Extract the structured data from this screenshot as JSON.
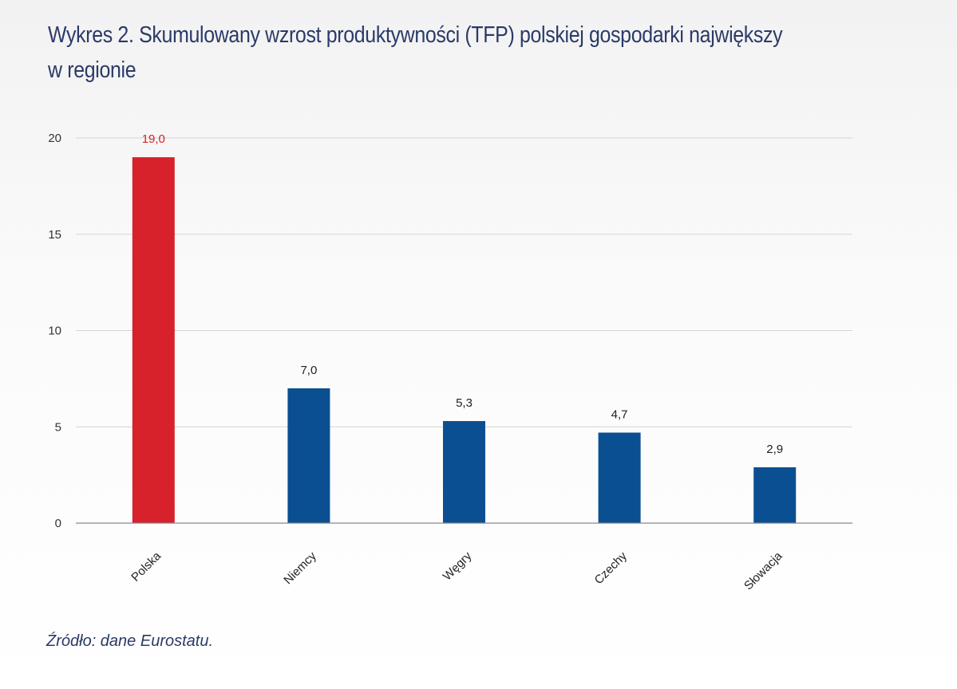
{
  "title_lines": [
    "Wykres 2. Skumulowany wzrost produktywności (TFP) polskiej gospodarki największy",
    "w regionie"
  ],
  "source": "Źródło: dane Eurostatu.",
  "colors": {
    "highlight": "#d7212b",
    "bar": "#0b4f93",
    "title": "#2b3a67"
  },
  "chart_data": {
    "type": "bar",
    "title": "Wykres 2. Skumulowany wzrost produktywności (TFP) polskiej gospodarki największy w regionie",
    "xlabel": "",
    "ylabel": "",
    "categories": [
      "Polska",
      "Niemcy",
      "Węgry",
      "Czechy",
      "Słowacja"
    ],
    "values": [
      19.0,
      7.0,
      5.3,
      4.7,
      2.9
    ],
    "value_labels": [
      "19,0",
      "7,0",
      "5,3",
      "4,7",
      "2,9"
    ],
    "highlighted": [
      true,
      false,
      false,
      false,
      false
    ],
    "ylim": [
      0,
      20
    ],
    "yticks": [
      0,
      5,
      10,
      15,
      20
    ],
    "ytick_labels": [
      "0",
      "5",
      "10",
      "15",
      "20"
    ],
    "grid": true,
    "legend": "none"
  }
}
